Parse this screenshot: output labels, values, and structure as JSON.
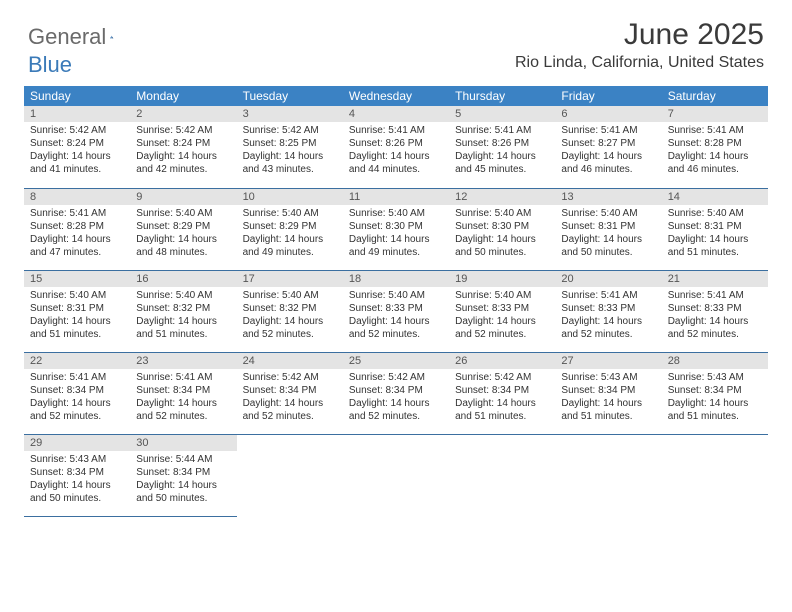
{
  "logo": {
    "left": "General",
    "right": "Blue"
  },
  "title": {
    "month": "June 2025",
    "location": "Rio Linda, California, United States"
  },
  "colors": {
    "header_bg": "#3b82c4",
    "header_text": "#ffffff",
    "daynum_bg": "#e4e4e4",
    "row_border": "#3b6fa0",
    "logo_gray": "#6a6a6a",
    "logo_blue": "#3b7ab8"
  },
  "weekdays": [
    "Sunday",
    "Monday",
    "Tuesday",
    "Wednesday",
    "Thursday",
    "Friday",
    "Saturday"
  ],
  "grid": [
    [
      {
        "n": "1",
        "sr": "5:42 AM",
        "ss": "8:24 PM",
        "dl": "14 hours and 41 minutes."
      },
      {
        "n": "2",
        "sr": "5:42 AM",
        "ss": "8:24 PM",
        "dl": "14 hours and 42 minutes."
      },
      {
        "n": "3",
        "sr": "5:42 AM",
        "ss": "8:25 PM",
        "dl": "14 hours and 43 minutes."
      },
      {
        "n": "4",
        "sr": "5:41 AM",
        "ss": "8:26 PM",
        "dl": "14 hours and 44 minutes."
      },
      {
        "n": "5",
        "sr": "5:41 AM",
        "ss": "8:26 PM",
        "dl": "14 hours and 45 minutes."
      },
      {
        "n": "6",
        "sr": "5:41 AM",
        "ss": "8:27 PM",
        "dl": "14 hours and 46 minutes."
      },
      {
        "n": "7",
        "sr": "5:41 AM",
        "ss": "8:28 PM",
        "dl": "14 hours and 46 minutes."
      }
    ],
    [
      {
        "n": "8",
        "sr": "5:41 AM",
        "ss": "8:28 PM",
        "dl": "14 hours and 47 minutes."
      },
      {
        "n": "9",
        "sr": "5:40 AM",
        "ss": "8:29 PM",
        "dl": "14 hours and 48 minutes."
      },
      {
        "n": "10",
        "sr": "5:40 AM",
        "ss": "8:29 PM",
        "dl": "14 hours and 49 minutes."
      },
      {
        "n": "11",
        "sr": "5:40 AM",
        "ss": "8:30 PM",
        "dl": "14 hours and 49 minutes."
      },
      {
        "n": "12",
        "sr": "5:40 AM",
        "ss": "8:30 PM",
        "dl": "14 hours and 50 minutes."
      },
      {
        "n": "13",
        "sr": "5:40 AM",
        "ss": "8:31 PM",
        "dl": "14 hours and 50 minutes."
      },
      {
        "n": "14",
        "sr": "5:40 AM",
        "ss": "8:31 PM",
        "dl": "14 hours and 51 minutes."
      }
    ],
    [
      {
        "n": "15",
        "sr": "5:40 AM",
        "ss": "8:31 PM",
        "dl": "14 hours and 51 minutes."
      },
      {
        "n": "16",
        "sr": "5:40 AM",
        "ss": "8:32 PM",
        "dl": "14 hours and 51 minutes."
      },
      {
        "n": "17",
        "sr": "5:40 AM",
        "ss": "8:32 PM",
        "dl": "14 hours and 52 minutes."
      },
      {
        "n": "18",
        "sr": "5:40 AM",
        "ss": "8:33 PM",
        "dl": "14 hours and 52 minutes."
      },
      {
        "n": "19",
        "sr": "5:40 AM",
        "ss": "8:33 PM",
        "dl": "14 hours and 52 minutes."
      },
      {
        "n": "20",
        "sr": "5:41 AM",
        "ss": "8:33 PM",
        "dl": "14 hours and 52 minutes."
      },
      {
        "n": "21",
        "sr": "5:41 AM",
        "ss": "8:33 PM",
        "dl": "14 hours and 52 minutes."
      }
    ],
    [
      {
        "n": "22",
        "sr": "5:41 AM",
        "ss": "8:34 PM",
        "dl": "14 hours and 52 minutes."
      },
      {
        "n": "23",
        "sr": "5:41 AM",
        "ss": "8:34 PM",
        "dl": "14 hours and 52 minutes."
      },
      {
        "n": "24",
        "sr": "5:42 AM",
        "ss": "8:34 PM",
        "dl": "14 hours and 52 minutes."
      },
      {
        "n": "25",
        "sr": "5:42 AM",
        "ss": "8:34 PM",
        "dl": "14 hours and 52 minutes."
      },
      {
        "n": "26",
        "sr": "5:42 AM",
        "ss": "8:34 PM",
        "dl": "14 hours and 51 minutes."
      },
      {
        "n": "27",
        "sr": "5:43 AM",
        "ss": "8:34 PM",
        "dl": "14 hours and 51 minutes."
      },
      {
        "n": "28",
        "sr": "5:43 AM",
        "ss": "8:34 PM",
        "dl": "14 hours and 51 minutes."
      }
    ],
    [
      {
        "n": "29",
        "sr": "5:43 AM",
        "ss": "8:34 PM",
        "dl": "14 hours and 50 minutes."
      },
      {
        "n": "30",
        "sr": "5:44 AM",
        "ss": "8:34 PM",
        "dl": "14 hours and 50 minutes."
      },
      null,
      null,
      null,
      null,
      null
    ]
  ],
  "labels": {
    "sunrise": "Sunrise: ",
    "sunset": "Sunset: ",
    "daylight": "Daylight: "
  }
}
